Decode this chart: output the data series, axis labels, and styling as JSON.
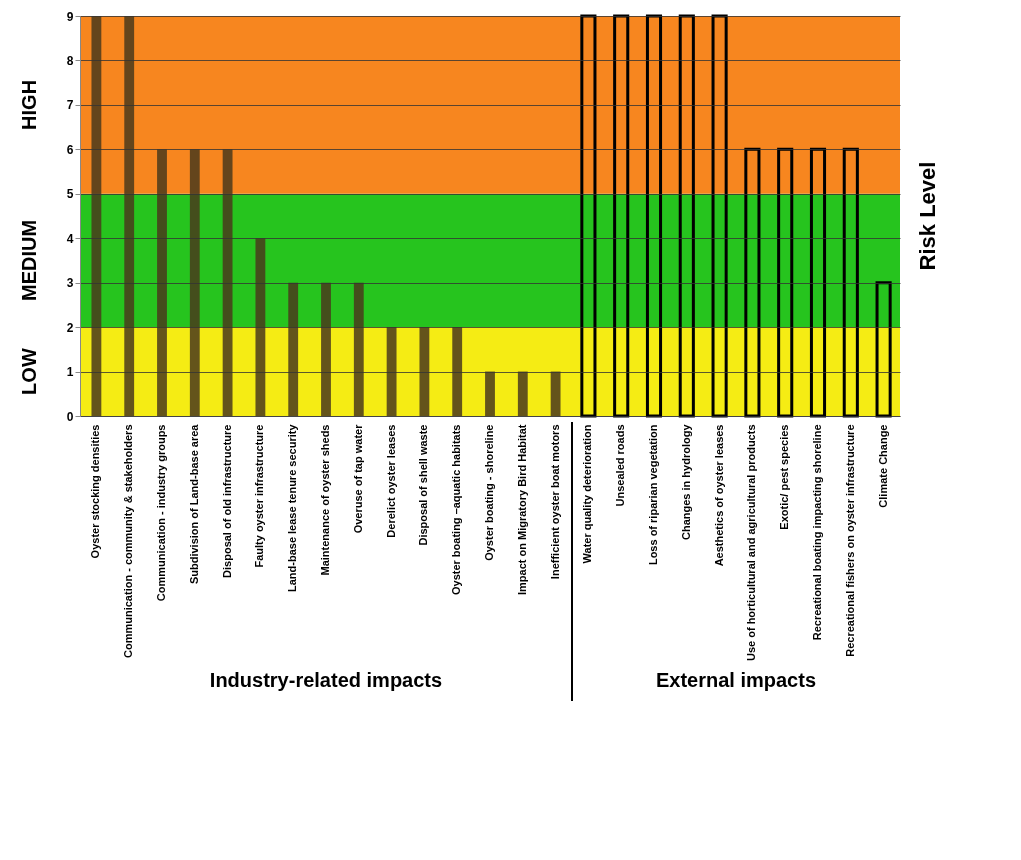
{
  "chart_data": {
    "type": "bar",
    "categories": [
      "Oyster stocking densities",
      "Communication - community & stakeholders",
      "Communication - industry groups",
      "Subdivision of Land-base area",
      "Disposal of old infrastructure",
      "Faulty oyster infrastructure",
      "Land-base lease tenure security",
      "Maintenance of oyster sheds",
      "Overuse of tap water",
      "Derelict oyster leases",
      "Disposal of shell waste",
      "Oyster boating –aquatic habitats",
      "Oyster boating - shoreline",
      "Impact on Migratory Bird Habitat",
      "Inefficient oyster boat motors",
      "Water quality deterioration",
      "Unsealed roads",
      "Loss of riparian vegetation",
      "Changes in hydrology",
      "Aesthetics of oyster leases",
      "Use of horticultural and agricultural products",
      "Exotic/ pest species",
      "Recreational boating impacting shoreline",
      "Recreational fishers on oyster infrastructure",
      "Climate Change"
    ],
    "series": [
      {
        "color": "#4a3a1c",
        "values": [
          9,
          9,
          6,
          6,
          6,
          4,
          3,
          3,
          3,
          2,
          2,
          2,
          1,
          1,
          1,
          null,
          null,
          null,
          null,
          null,
          null,
          null,
          null,
          null,
          null
        ]
      },
      {
        "color": "#000000",
        "values": [
          null,
          null,
          null,
          null,
          null,
          null,
          null,
          null,
          null,
          null,
          null,
          null,
          null,
          null,
          null,
          9,
          9,
          9,
          9,
          9,
          6,
          6,
          6,
          6,
          3
        ]
      }
    ],
    "ylim": [
      0,
      9
    ],
    "yticks": [
      0,
      1,
      2,
      3,
      4,
      5,
      6,
      7,
      8,
      9
    ],
    "grid": "y",
    "y2label": "Risk Level",
    "bands": [
      {
        "axis": "y",
        "from": 0,
        "to": 2,
        "label": "LOW",
        "color": "#f5ec14"
      },
      {
        "axis": "y",
        "from": 2,
        "to": 5,
        "label": "MEDIUM",
        "color": "#26c41e"
      },
      {
        "axis": "y",
        "from": 5,
        "to": 9,
        "label": "HIGH",
        "color": "#f7861f"
      }
    ],
    "annotations": [
      "Industry-related impacts",
      "External impacts"
    ]
  }
}
